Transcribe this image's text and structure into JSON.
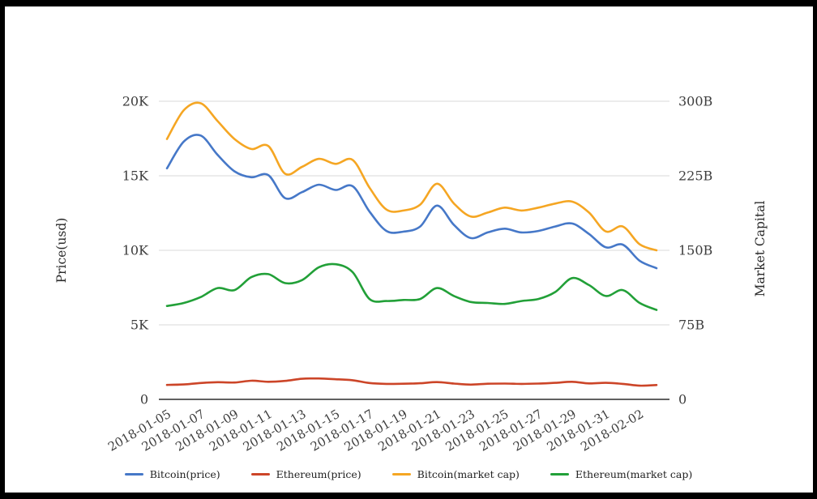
{
  "frame": {
    "border_color": "#000000",
    "background": "#ffffff"
  },
  "chart_data": {
    "type": "line",
    "curve": "smooth",
    "grid": "horizontal-only",
    "grid_color": "#d9d9d9",
    "axis_line_color": "#2b2b2b",
    "legend_position": "bottom",
    "x": [
      "2018-01-05",
      "2018-01-06",
      "2018-01-07",
      "2018-01-08",
      "2018-01-09",
      "2018-01-10",
      "2018-01-11",
      "2018-01-12",
      "2018-01-13",
      "2018-01-14",
      "2018-01-15",
      "2018-01-16",
      "2018-01-17",
      "2018-01-18",
      "2018-01-19",
      "2018-01-20",
      "2018-01-21",
      "2018-01-22",
      "2018-01-23",
      "2018-01-24",
      "2018-01-25",
      "2018-01-26",
      "2018-01-27",
      "2018-01-28",
      "2018-01-29",
      "2018-01-30",
      "2018-01-31",
      "2018-02-01",
      "2018-02-02",
      "2018-02-03"
    ],
    "x_tick_step": 2,
    "x_tick_labels": [
      "2018-01-05",
      "2018-01-07",
      "2018-01-09",
      "2018-01-11",
      "2018-01-13",
      "2018-01-15",
      "2018-01-17",
      "2018-01-19",
      "2018-01-21",
      "2018-01-23",
      "2018-01-25",
      "2018-01-27",
      "2018-01-29",
      "2018-01-31",
      "2018-02-02"
    ],
    "left_axis": {
      "title": "Price(usd)",
      "unit": "USD",
      "range": [
        0,
        20000
      ],
      "ticks": [
        "0",
        "5K",
        "10K",
        "15K",
        "20K"
      ],
      "tick_values": [
        0,
        5000,
        10000,
        15000,
        20000
      ]
    },
    "right_axis": {
      "title": "Market Capital",
      "unit": "billions USD",
      "range": [
        0,
        300
      ],
      "ticks": [
        "0",
        "75B",
        "150B",
        "225B",
        "300B"
      ],
      "tick_values": [
        0,
        75,
        150,
        225,
        300
      ]
    },
    "series": [
      {
        "name": "Bitcoin(price)",
        "axis": "left",
        "color": "#4678C8",
        "values": [
          15500,
          17300,
          17700,
          16400,
          15300,
          14900,
          15050,
          13500,
          13900,
          14400,
          14050,
          14300,
          12600,
          11300,
          11250,
          11600,
          13000,
          11700,
          10820,
          11200,
          11450,
          11200,
          11300,
          11600,
          11800,
          11100,
          10200,
          10380,
          9300,
          8800
        ]
      },
      {
        "name": "Ethereum(price)",
        "axis": "left",
        "color": "#CC4528",
        "values": [
          970,
          1000,
          1100,
          1150,
          1130,
          1250,
          1180,
          1240,
          1380,
          1400,
          1350,
          1280,
          1100,
          1040,
          1050,
          1080,
          1160,
          1060,
          990,
          1050,
          1060,
          1040,
          1060,
          1110,
          1180,
          1070,
          1110,
          1040,
          920,
          960
        ]
      },
      {
        "name": "Bitcoin(market cap)",
        "axis": "right",
        "color": "#F5A623",
        "values": [
          262,
          291,
          298,
          280,
          262,
          252,
          255,
          227,
          234,
          242,
          237,
          241,
          213,
          191,
          190,
          196,
          217,
          197,
          184,
          188,
          193,
          190,
          193,
          197,
          199,
          188,
          169,
          174,
          156,
          150
        ]
      },
      {
        "name": "Ethereum(market cap)",
        "axis": "right",
        "color": "#22A038",
        "values": [
          94,
          97,
          103,
          112,
          110,
          123,
          126,
          117,
          120,
          133,
          136,
          128,
          101,
          99,
          100,
          101,
          112,
          104,
          98,
          97,
          96,
          99,
          101,
          108,
          122,
          115,
          104,
          110,
          97,
          90
        ]
      }
    ]
  }
}
